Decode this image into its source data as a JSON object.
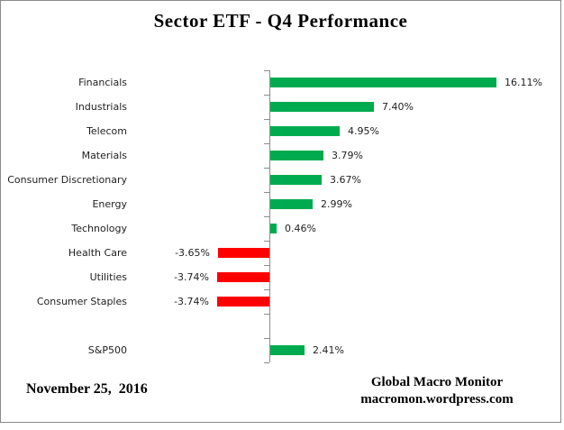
{
  "title": "Sector ETF - Q4 Performance",
  "footer": {
    "date": "November 25,  2016",
    "source_name": "Global Macro Monitor",
    "source_url": "macromon.wordpress.com"
  },
  "colors": {
    "positive_bar": "#00AB4F",
    "negative_bar": "#FF0000",
    "axis": "#8C8C8C",
    "label_text": "#1F1F1F"
  },
  "chart_data": {
    "type": "bar",
    "orientation": "horizontal",
    "title": "Sector ETF - Q4 Performance",
    "unit": "%",
    "value_axis_visible": false,
    "gridlines": false,
    "legend": "none",
    "xlim": [
      -5,
      17
    ],
    "rows": [
      {
        "category": "Financials",
        "value": 16.11,
        "label": "16.11%"
      },
      {
        "category": "Industrials",
        "value": 7.4,
        "label": "7.40%"
      },
      {
        "category": "Telecom",
        "value": 4.95,
        "label": "4.95%"
      },
      {
        "category": "Materials",
        "value": 3.79,
        "label": "3.79%"
      },
      {
        "category": "Consumer Discretionary",
        "value": 3.67,
        "label": "3.67%"
      },
      {
        "category": "Energy",
        "value": 2.99,
        "label": "2.99%"
      },
      {
        "category": "Technology",
        "value": 0.46,
        "label": "0.46%"
      },
      {
        "category": "Health Care",
        "value": -3.65,
        "label": "-3.65%"
      },
      {
        "category": "Utilities",
        "value": -3.74,
        "label": "-3.74%"
      },
      {
        "category": "Consumer Staples",
        "value": -3.74,
        "label": "-3.74%"
      },
      {
        "category": "",
        "value": null,
        "label": ""
      },
      {
        "category": "S&P500",
        "value": 2.41,
        "label": "2.41%"
      }
    ]
  }
}
